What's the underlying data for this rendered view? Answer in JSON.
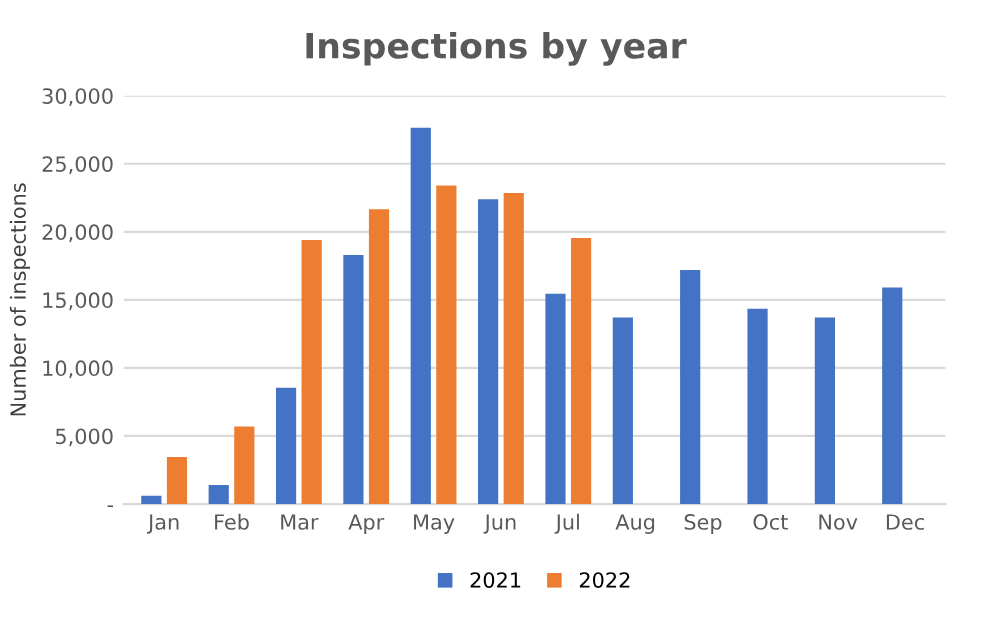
{
  "chart_data": {
    "type": "bar",
    "title": "Inspections by year",
    "ylabel": "Number of inspections",
    "categories": [
      "Jan",
      "Feb",
      "Mar",
      "Apr",
      "May",
      "Jun",
      "Jul",
      "Aug",
      "Sep",
      "Oct",
      "Nov",
      "Dec"
    ],
    "series": [
      {
        "name": "2021",
        "color": "#4472c4",
        "values": [
          600,
          1400,
          8550,
          18300,
          27650,
          22400,
          15450,
          13700,
          17200,
          14350,
          13700,
          15900
        ]
      },
      {
        "name": "2022",
        "color": "#ed7d31",
        "values": [
          3450,
          5700,
          19400,
          21650,
          23400,
          22850,
          19550,
          null,
          null,
          null,
          null,
          null
        ]
      }
    ],
    "ylim": [
      0,
      30000
    ],
    "yticks": [
      {
        "value": 0,
        "label": "-"
      },
      {
        "value": 5000,
        "label": "5,000"
      },
      {
        "value": 10000,
        "label": "10,000"
      },
      {
        "value": 15000,
        "label": "15,000"
      },
      {
        "value": 20000,
        "label": "20,000"
      },
      {
        "value": 25000,
        "label": "25,000"
      },
      {
        "value": 30000,
        "label": "30,000"
      }
    ],
    "grid": "y",
    "legend": "bottom"
  }
}
